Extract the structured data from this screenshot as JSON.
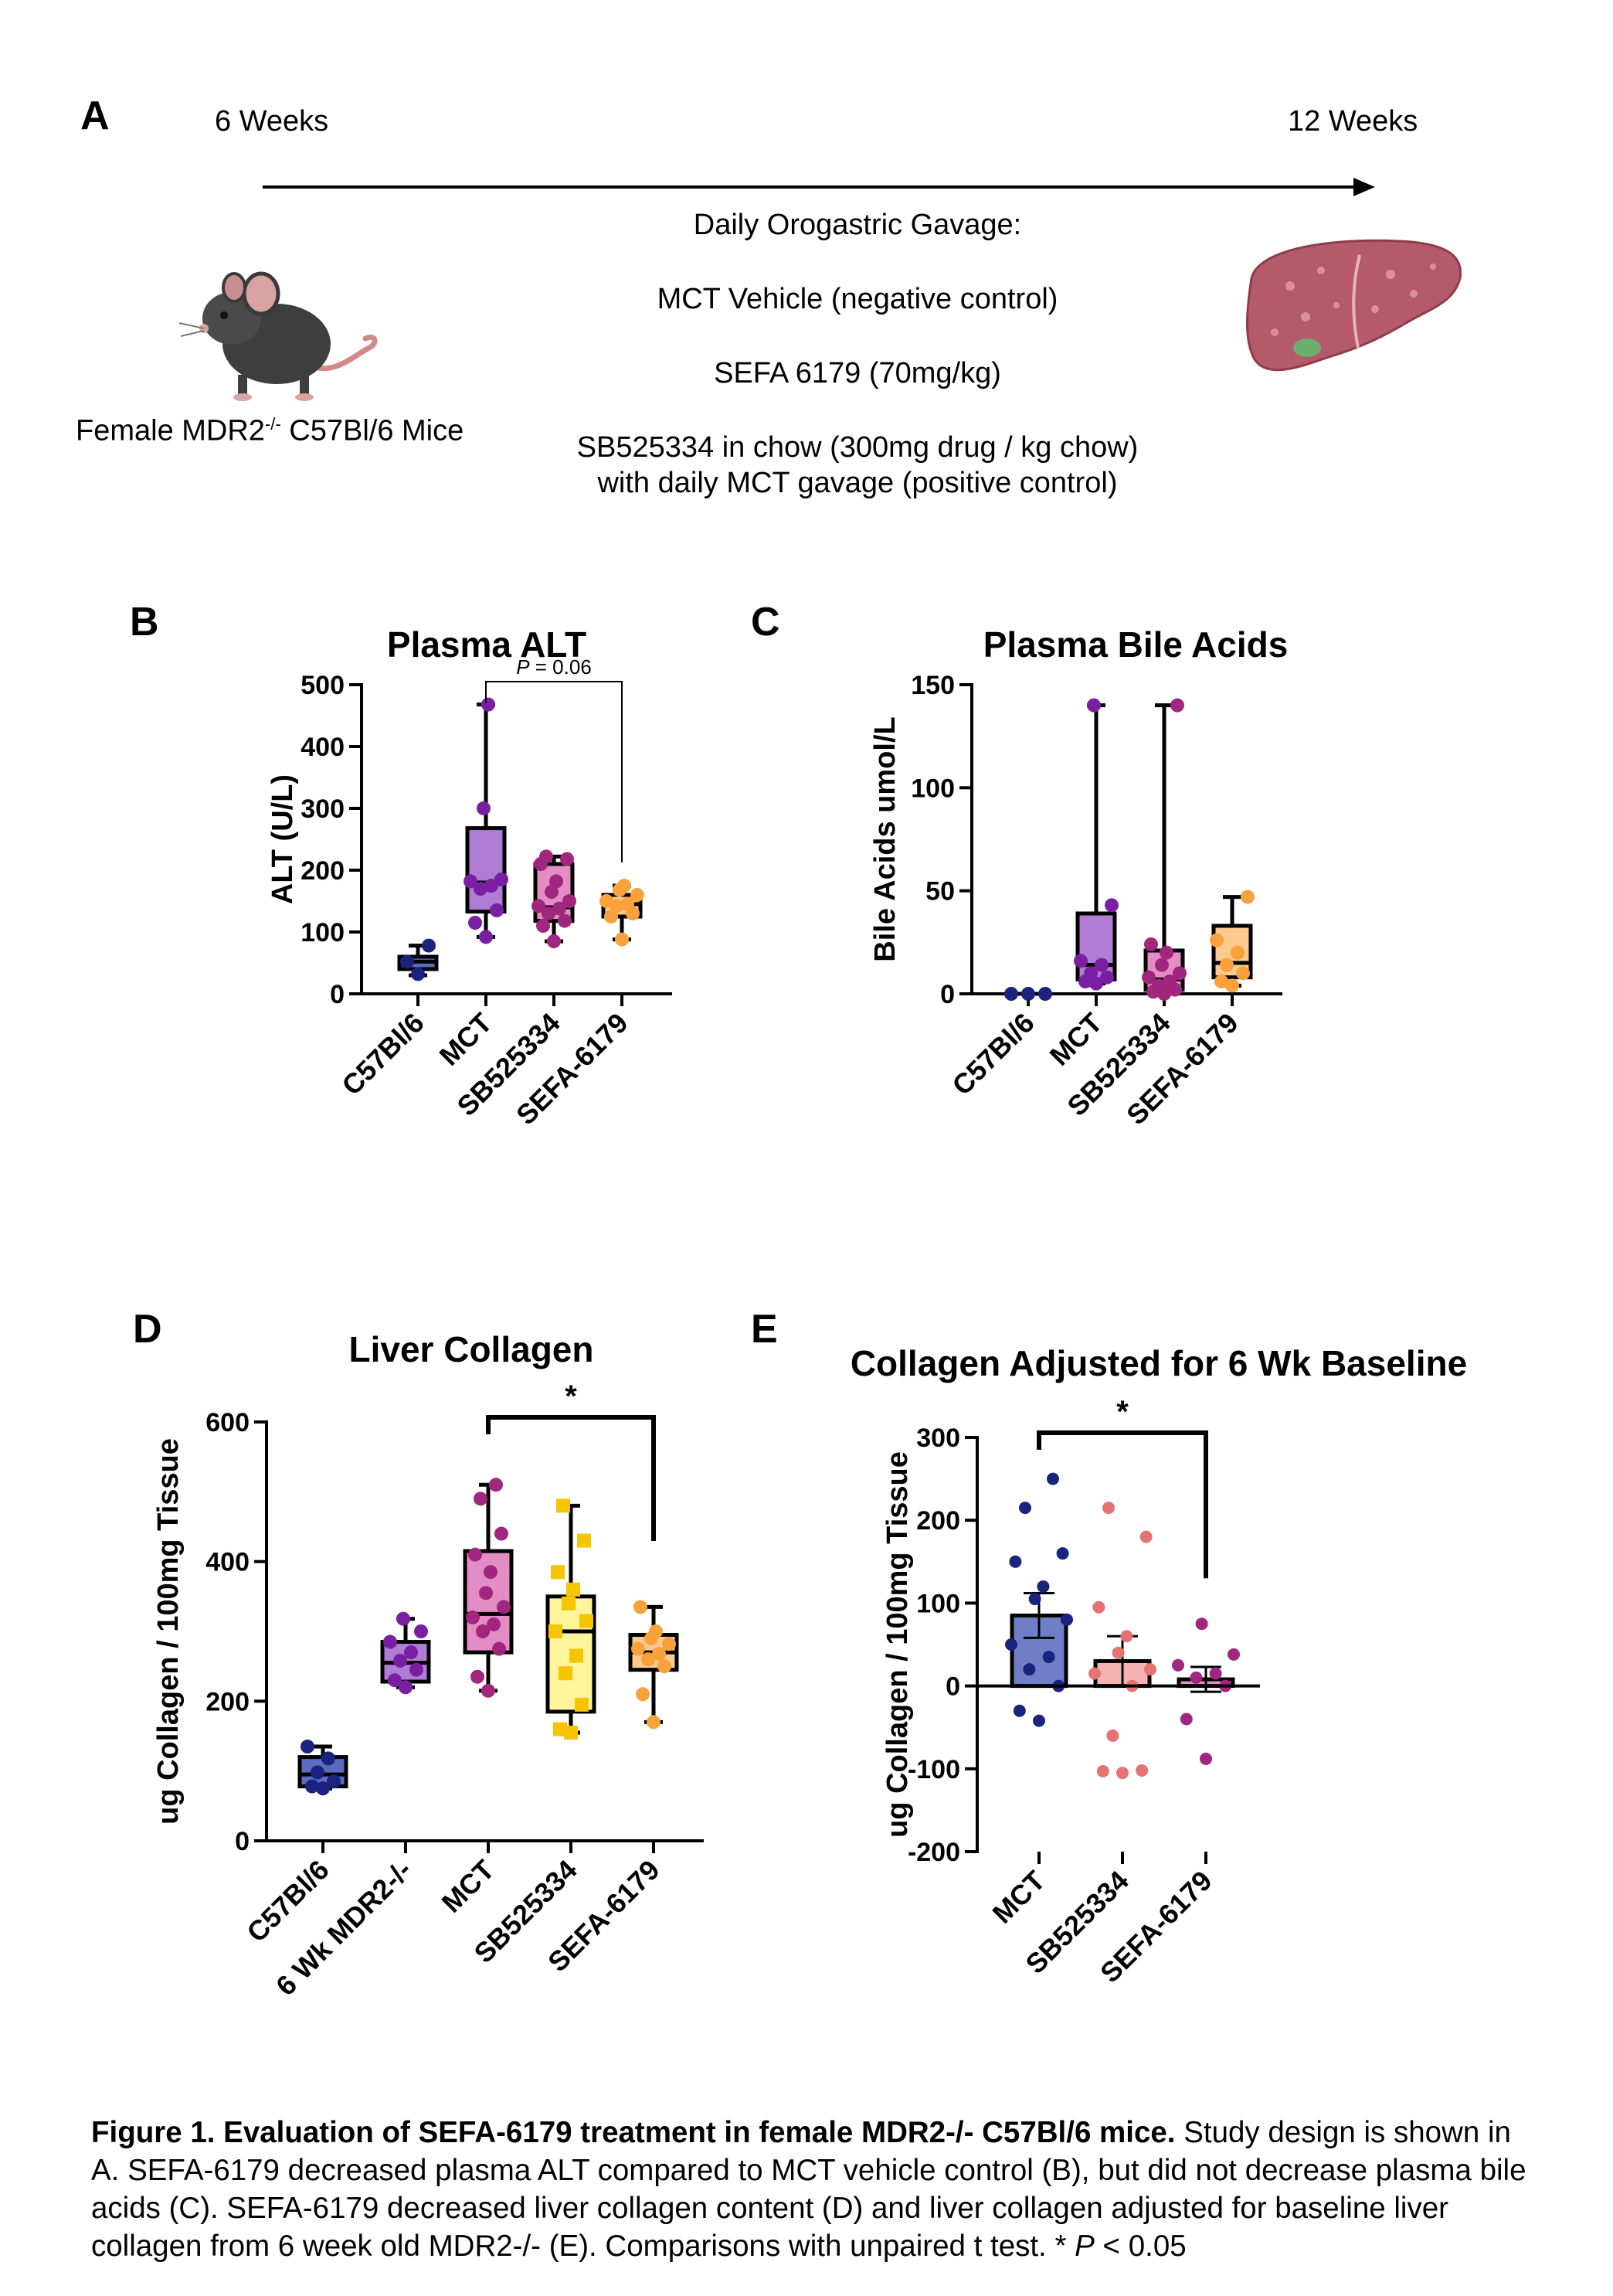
{
  "panel_a": {
    "letter": "A",
    "start_label": "6 Weeks",
    "end_label": "12 Weeks",
    "mouse_label_pre": "Female MDR2",
    "mouse_label_sup": "-/-",
    "mouse_label_post": " C57Bl/6 Mice",
    "treatment_lines": [
      "Daily Orogastric Gavage:",
      "MCT Vehicle (negative control)",
      "SEFA 6179 (70mg/kg)",
      "SB525334 in chow (300mg drug / kg chow)",
      "with daily MCT gavage (positive control)"
    ]
  },
  "caption": {
    "bold": "Figure 1. Evaluation of SEFA-6179 treatment in female MDR2-/- C57Bl/6 mice.",
    "text": " Study design is shown in A. SEFA-6179 decreased plasma ALT compared to MCT vehicle control (B), but did not decrease plasma bile acids (C). SEFA-6179 decreased liver collagen content (D) and liver collagen adjusted for baseline liver collagen from 6 week old MDR2-/-  (E). Comparisons with unpaired t test. ",
    "pval_p": "P",
    "pval_rest": " < 0.05",
    "pval_star": "* "
  },
  "colors": {
    "navy": "#1a237e",
    "purple": "#7b1fa2",
    "magenta": "#a0267e",
    "orange": "#f9a23c",
    "yellow": "#f7c400",
    "salmon": "#e57373"
  },
  "chart_data": [
    {
      "panel": "B",
      "type": "box",
      "title": "Plasma ALT",
      "ylabel": "ALT (U/L)",
      "ylim": [
        0,
        500
      ],
      "yticks": [
        0,
        100,
        200,
        300,
        400,
        500
      ],
      "categories": [
        "C57Bl/6",
        "MCT",
        "SB525334",
        "SEFA-6179"
      ],
      "boxes": [
        {
          "name": "C57Bl/6",
          "min": 30,
          "q1": 40,
          "median": 52,
          "q3": 60,
          "max": 78,
          "color": "#1a237e",
          "fill": "#5c6bc0",
          "points": [
            32,
            52,
            78
          ]
        },
        {
          "name": "MCT",
          "min": 92,
          "q1": 133,
          "median": 180,
          "q3": 268,
          "max": 468,
          "color": "#7b1fa2",
          "fill": "#b07cd6",
          "points": [
            92,
            115,
            135,
            170,
            175,
            182,
            185,
            300,
            468
          ]
        },
        {
          "name": "SB525334",
          "min": 85,
          "q1": 118,
          "median": 140,
          "q3": 210,
          "max": 222,
          "color": "#a0267e",
          "fill": "#e48dc4",
          "points": [
            85,
            110,
            118,
            130,
            138,
            142,
            150,
            165,
            182,
            210,
            218,
            222
          ]
        },
        {
          "name": "SEFA-6179",
          "min": 88,
          "q1": 125,
          "median": 145,
          "q3": 160,
          "max": 175,
          "color": "#f9a23c",
          "fill": "#fcc98e",
          "points": [
            88,
            125,
            130,
            142,
            145,
            150,
            160,
            168,
            175
          ]
        }
      ],
      "annotations": [
        {
          "from": "MCT",
          "to": "SEFA-6179",
          "label_p": "P",
          "label_rest": " = 0.06"
        }
      ]
    },
    {
      "panel": "C",
      "type": "box",
      "title": "Plasma Bile Acids",
      "ylabel": "Bile Acids umol/L",
      "ylim": [
        0,
        150
      ],
      "yticks": [
        0,
        50,
        100,
        150
      ],
      "categories": [
        "C57Bl/6",
        "MCT",
        "SB525334",
        "SEFA-6179"
      ],
      "boxes": [
        {
          "name": "C57Bl/6",
          "min": 0,
          "q1": 0,
          "median": 0,
          "q3": 0,
          "max": 0,
          "color": "#1a237e",
          "fill": "#5c6bc0",
          "points": [
            0,
            0,
            0
          ]
        },
        {
          "name": "MCT",
          "min": 5,
          "q1": 7,
          "median": 14,
          "q3": 39,
          "max": 140,
          "color": "#7b1fa2",
          "fill": "#b07cd6",
          "points": [
            5,
            6,
            8,
            10,
            14,
            16,
            43,
            140
          ]
        },
        {
          "name": "SB525334",
          "min": 0,
          "q1": 2,
          "median": 7,
          "q3": 21,
          "max": 140,
          "color": "#a0267e",
          "fill": "#e48dc4",
          "points": [
            0,
            1,
            2,
            4,
            6,
            8,
            10,
            14,
            20,
            24,
            140
          ]
        },
        {
          "name": "SEFA-6179",
          "min": 4,
          "q1": 8,
          "median": 15,
          "q3": 33,
          "max": 47,
          "color": "#f9a23c",
          "fill": "#fcc98e",
          "points": [
            4,
            6,
            10,
            14,
            20,
            26,
            47
          ]
        }
      ]
    },
    {
      "panel": "D",
      "type": "box",
      "title": "Liver Collagen",
      "ylabel": "ug Collagen / 100mg Tissue",
      "ylim": [
        0,
        600
      ],
      "yticks": [
        0,
        200,
        400,
        600
      ],
      "categories": [
        "C57Bl/6",
        "6 Wk MDR2-/-",
        "MCT",
        "SB525334",
        "SEFA-6179"
      ],
      "boxes": [
        {
          "name": "C57Bl/6",
          "min": 75,
          "q1": 78,
          "median": 95,
          "q3": 120,
          "max": 135,
          "color": "#1a237e",
          "fill": "#5c6bc0",
          "points": [
            75,
            78,
            85,
            98,
            118,
            135
          ]
        },
        {
          "name": "6 Wk MDR2-/-",
          "min": 220,
          "q1": 228,
          "median": 255,
          "q3": 285,
          "max": 318,
          "color": "#7b1fa2",
          "fill": "#b07cd6",
          "points": [
            220,
            230,
            245,
            258,
            270,
            285,
            300,
            318
          ]
        },
        {
          "name": "MCT",
          "min": 215,
          "q1": 270,
          "median": 325,
          "q3": 415,
          "max": 510,
          "color": "#a0267e",
          "fill": "#e48dc4",
          "points": [
            215,
            235,
            275,
            300,
            310,
            320,
            335,
            355,
            385,
            410,
            440,
            490,
            510
          ]
        },
        {
          "name": "SB525334",
          "min": 155,
          "q1": 185,
          "median": 300,
          "q3": 350,
          "max": 480,
          "color": "#f7c400",
          "fill": "#fff59d",
          "points": [
            155,
            160,
            195,
            240,
            265,
            300,
            315,
            340,
            360,
            385,
            430,
            480
          ]
        },
        {
          "name": "SEFA-6179",
          "min": 170,
          "q1": 245,
          "median": 270,
          "q3": 295,
          "max": 335,
          "color": "#f9a23c",
          "fill": "#fcc98e",
          "points": [
            170,
            210,
            250,
            260,
            268,
            275,
            282,
            290,
            300,
            335
          ]
        }
      ],
      "annotations": [
        {
          "from": "MCT",
          "to": "SEFA-6179",
          "label": "*"
        }
      ]
    },
    {
      "panel": "E",
      "type": "bar",
      "title": "Collagen Adjusted for 6 Wk Baseline",
      "ylabel": "ug Collagen / 100mg Tissue",
      "ylim": [
        -200,
        300
      ],
      "yticks": [
        -200,
        -100,
        0,
        100,
        200,
        300
      ],
      "categories": [
        "MCT",
        "SB525334",
        "SEFA-6179"
      ],
      "bars": [
        {
          "name": "MCT",
          "mean": 85,
          "sem": 27,
          "color": "#1a237e",
          "fill": "#6f7fc7",
          "points": [
            -42,
            -30,
            0,
            20,
            35,
            50,
            80,
            105,
            120,
            150,
            160,
            215,
            250
          ]
        },
        {
          "name": "SB525334",
          "mean": 30,
          "sem": 30,
          "color": "#e57373",
          "fill": "#f5b2b2",
          "points": [
            -105,
            -103,
            -102,
            -60,
            0,
            15,
            20,
            40,
            60,
            95,
            180,
            215
          ]
        },
        {
          "name": "SEFA-6179",
          "mean": 8,
          "sem": 15,
          "color": "#a0267e",
          "fill": "#e48dc4",
          "points": [
            -88,
            -40,
            0,
            10,
            15,
            25,
            38,
            75
          ]
        }
      ],
      "annotations": [
        {
          "from": "MCT",
          "to": "SEFA-6179",
          "label": "*"
        }
      ]
    }
  ]
}
